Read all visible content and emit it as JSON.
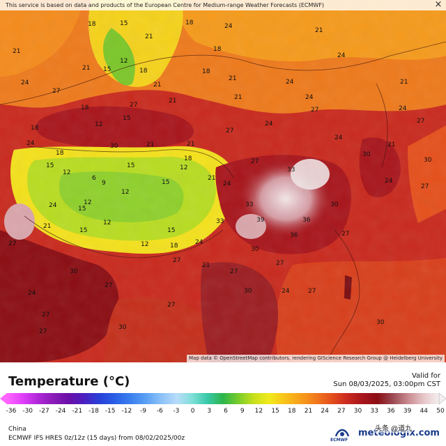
{
  "notice": "This service is based on data and products of the European Centre for Medium-range Weather Forecasts (ECMWF)",
  "close_symbol": "×",
  "attribution": "Map data © OpenStreetMap contributors, rendering GIScience Research Group @ Heidelberg University",
  "title": "Temperature (°C)",
  "valid_label": "Valid for",
  "valid_time": "Sun 08/03/2025, 03:00pm CST",
  "region": "China",
  "model_info": "ECMWF IFS HRES 0z/12z (15 days) from 08/02/2025/00z",
  "brand": "meteologix.com",
  "ecmwf_label": "ECMWF",
  "watermark": "头条 @道九",
  "colorbar": {
    "min": -36,
    "max": 50,
    "ticks": [
      "-36",
      "-30",
      "-27",
      "-24",
      "-21",
      "-18",
      "-15",
      "-12",
      "-9",
      "-6",
      "-3",
      "0",
      "3",
      "6",
      "9",
      "12",
      "15",
      "18",
      "21",
      "24",
      "27",
      "30",
      "33",
      "36",
      "39",
      "44",
      "50"
    ],
    "colors": [
      "#ff66ff",
      "#e040fb",
      "#b026d8",
      "#8a1bb8",
      "#6a0fa8",
      "#4b1fc0",
      "#2840d8",
      "#2a5fe6",
      "#3a7fee",
      "#5aa0f5",
      "#8cc2f8",
      "#b8dcfa",
      "#7fe0d8",
      "#38c8a8",
      "#2db54a",
      "#7acc2a",
      "#c7e01c",
      "#f1ea1c",
      "#f8c31a",
      "#f7a01b",
      "#f27a1c",
      "#e5501c",
      "#cc2a20",
      "#a8161c",
      "#8b0e14",
      "#9c4a52",
      "#c98a90",
      "#e7c6c9",
      "#f4eff0"
    ],
    "colors_caption": "gradient colors of the temperature scale"
  },
  "labels": [
    {
      "t": "18"
    },
    {
      "t": "15"
    },
    {
      "t": "21"
    },
    {
      "t": "18"
    },
    {
      "t": "24"
    },
    {
      "t": "21"
    },
    {
      "t": "18"
    },
    {
      "t": "21"
    },
    {
      "t": "24"
    },
    {
      "t": "21"
    },
    {
      "t": "18"
    },
    {
      "t": "15"
    },
    {
      "t": "12"
    },
    {
      "t": "18"
    },
    {
      "t": "21"
    },
    {
      "t": "24"
    },
    {
      "t": "27"
    },
    {
      "t": "24"
    },
    {
      "t": "21"
    },
    {
      "t": "24"
    },
    {
      "t": "21"
    },
    {
      "t": "18"
    },
    {
      "t": "15"
    },
    {
      "t": "12"
    },
    {
      "t": "21"
    },
    {
      "t": "27"
    },
    {
      "t": "24"
    },
    {
      "t": "27"
    },
    {
      "t": "30"
    },
    {
      "t": "21"
    },
    {
      "t": "18"
    },
    {
      "t": "15"
    },
    {
      "t": "12"
    },
    {
      "t": "15"
    },
    {
      "t": "12"
    },
    {
      "t": "12"
    },
    {
      "t": "15"
    },
    {
      "t": "18"
    },
    {
      "t": "21"
    },
    {
      "t": "24"
    },
    {
      "t": "27"
    },
    {
      "t": "30"
    },
    {
      "t": "24"
    },
    {
      "t": "21"
    },
    {
      "t": "33"
    },
    {
      "t": "39"
    },
    {
      "t": "36"
    },
    {
      "t": "33"
    },
    {
      "t": "36"
    },
    {
      "t": "30"
    },
    {
      "t": "27"
    },
    {
      "t": "21"
    },
    {
      "t": "27"
    },
    {
      "t": "30"
    },
    {
      "t": "27"
    },
    {
      "t": "24"
    },
    {
      "t": "27"
    },
    {
      "t": "30"
    },
    {
      "t": "27"
    },
    {
      "t": "27"
    },
    {
      "t": "24"
    },
    {
      "t": "30"
    },
    {
      "t": "27"
    },
    {
      "t": "15"
    },
    {
      "t": "12"
    },
    {
      "t": "18"
    },
    {
      "t": "21"
    },
    {
      "t": "24"
    },
    {
      "t": "15"
    },
    {
      "t": "12"
    },
    {
      "t": "9"
    },
    {
      "t": "6"
    },
    {
      "t": "12"
    },
    {
      "t": "15"
    },
    {
      "t": "21"
    },
    {
      "t": "18"
    },
    {
      "t": "24"
    },
    {
      "t": "27"
    },
    {
      "t": "30"
    },
    {
      "t": "24"
    },
    {
      "t": "27"
    },
    {
      "t": "30"
    },
    {
      "t": "33"
    },
    {
      "t": "27"
    },
    {
      "t": "24"
    },
    {
      "t": "27"
    },
    {
      "t": "30"
    },
    {
      "t": "27"
    },
    {
      "t": "24"
    },
    {
      "t": "21"
    },
    {
      "t": "27"
    }
  ]
}
